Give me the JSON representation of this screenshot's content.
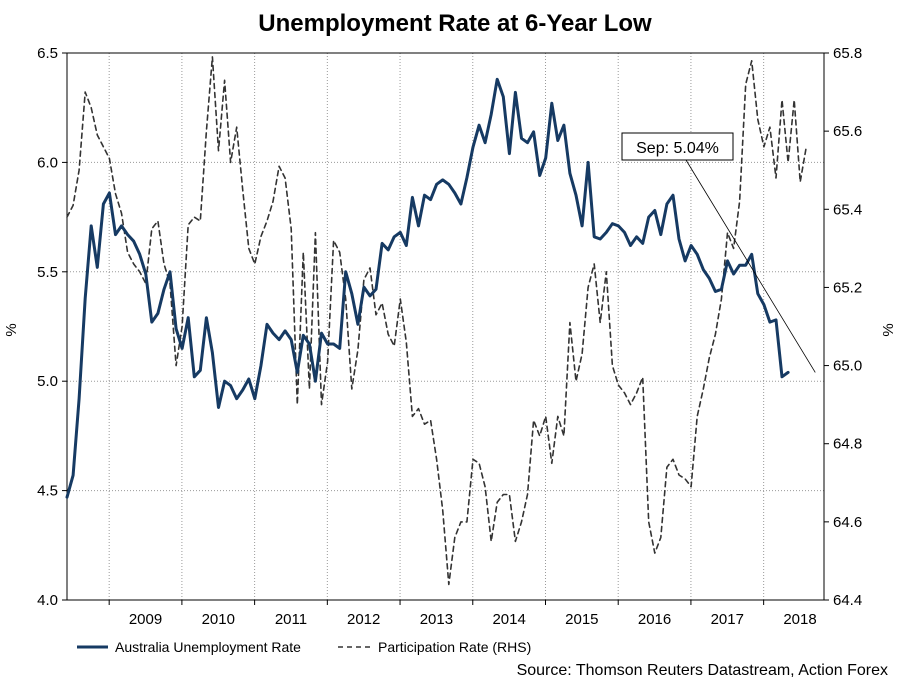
{
  "chart_data": {
    "type": "line",
    "title": "Unemployment Rate at 6-Year Low",
    "ylabel_left": "%",
    "ylabel_right": "%",
    "ylim_left": [
      4.0,
      6.5
    ],
    "ylim_right": [
      64.4,
      65.8
    ],
    "yticks_left": [
      "4.0",
      "4.5",
      "5.0",
      "5.5",
      "6.0",
      "6.5"
    ],
    "yticks_right": [
      "64.4",
      "64.6",
      "64.8",
      "65.0",
      "65.2",
      "65.4",
      "65.6",
      "65.8"
    ],
    "xlim": [
      2008.42,
      2018.83
    ],
    "x_tick_labels": [
      "2009",
      "2010",
      "2011",
      "2012",
      "2013",
      "2014",
      "2015",
      "2016",
      "2017",
      "2018"
    ],
    "grid": true,
    "legend_position": "bottom-left",
    "annotation": {
      "text": "Sep: 5.04%",
      "x": 2018.71,
      "y": 5.04
    },
    "source": "Source: Thomson Reuters Datastream, Action Forex",
    "series": [
      {
        "name": "Australia Unemployment Rate",
        "axis": "left",
        "style": "solid",
        "color": "#163a63",
        "start": 2008.42,
        "step": 0.08333,
        "values": [
          4.47,
          4.57,
          4.92,
          5.38,
          5.71,
          5.52,
          5.81,
          5.86,
          5.67,
          5.71,
          5.67,
          5.64,
          5.58,
          5.49,
          5.27,
          5.31,
          5.42,
          5.5,
          5.24,
          5.15,
          5.29,
          5.02,
          5.05,
          5.29,
          5.13,
          4.88,
          5.0,
          4.98,
          4.92,
          4.96,
          5.01,
          4.92,
          5.07,
          5.26,
          5.22,
          5.19,
          5.23,
          5.19,
          5.04,
          5.21,
          5.17,
          5.0,
          5.22,
          5.17,
          5.17,
          5.15,
          5.5,
          5.4,
          5.26,
          5.43,
          5.39,
          5.42,
          5.63,
          5.6,
          5.66,
          5.68,
          5.62,
          5.84,
          5.71,
          5.85,
          5.83,
          5.9,
          5.92,
          5.9,
          5.86,
          5.81,
          5.93,
          6.07,
          6.17,
          6.09,
          6.22,
          6.38,
          6.3,
          6.04,
          6.32,
          6.11,
          6.09,
          6.14,
          5.94,
          6.02,
          6.27,
          6.1,
          6.17,
          5.95,
          5.85,
          5.71,
          6.0,
          5.66,
          5.65,
          5.68,
          5.72,
          5.71,
          5.68,
          5.62,
          5.66,
          5.63,
          5.75,
          5.78,
          5.67,
          5.81,
          5.85,
          5.65,
          5.55,
          5.62,
          5.58,
          5.51,
          5.47,
          5.41,
          5.42,
          5.55,
          5.49,
          5.53,
          5.53,
          5.58,
          5.4,
          5.35,
          5.27,
          5.28,
          5.02,
          5.04
        ]
      },
      {
        "name": "Participation Rate (RHS)",
        "axis": "right",
        "style": "dashed",
        "color": "#333333",
        "start": 2008.42,
        "step": 0.08333,
        "values": [
          65.38,
          65.41,
          65.5,
          65.7,
          65.66,
          65.59,
          65.56,
          65.53,
          65.44,
          65.39,
          65.29,
          65.26,
          65.24,
          65.21,
          65.35,
          65.37,
          65.26,
          65.21,
          65.0,
          65.1,
          65.36,
          65.38,
          65.37,
          65.6,
          65.79,
          65.55,
          65.73,
          65.52,
          65.61,
          65.45,
          65.3,
          65.26,
          65.33,
          65.37,
          65.42,
          65.51,
          65.48,
          65.35,
          64.9,
          65.29,
          64.94,
          65.34,
          64.9,
          65.01,
          65.32,
          65.29,
          65.17,
          64.94,
          65.04,
          65.22,
          65.25,
          65.13,
          65.16,
          65.08,
          65.05,
          65.17,
          65.06,
          64.87,
          64.89,
          64.85,
          64.86,
          64.76,
          64.63,
          64.44,
          64.56,
          64.6,
          64.6,
          64.76,
          64.75,
          64.69,
          64.55,
          64.65,
          64.67,
          64.67,
          64.55,
          64.6,
          64.67,
          64.86,
          64.82,
          64.87,
          64.75,
          64.87,
          64.82,
          65.11,
          64.96,
          65.03,
          65.2,
          65.26,
          65.11,
          65.24,
          65.0,
          64.95,
          64.93,
          64.9,
          64.93,
          64.97,
          64.6,
          64.52,
          64.56,
          64.74,
          64.76,
          64.72,
          64.71,
          64.69,
          64.87,
          64.94,
          65.02,
          65.08,
          65.17,
          65.34,
          65.3,
          65.42,
          65.72,
          65.78,
          65.63,
          65.56,
          65.61,
          65.48,
          65.68,
          65.52,
          65.68,
          65.47,
          65.56
        ]
      }
    ]
  }
}
